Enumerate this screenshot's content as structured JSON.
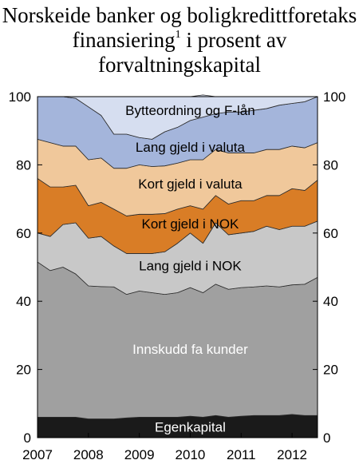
{
  "chart_data": {
    "type": "area",
    "stacked": true,
    "title": {
      "line1": "Norskeide banker og boligkredittforetaks",
      "line2_main": "finansiering",
      "line2_sup": "1",
      "line2_rest": " i prosent av",
      "line3": "forvaltningskapital"
    },
    "xlabel": "",
    "ylabel": "",
    "xlim": [
      2007,
      2012.5
    ],
    "ylim": [
      0,
      100
    ],
    "x_ticks": [
      "2007",
      "2008",
      "2009",
      "2010",
      "2011",
      "2012"
    ],
    "y_ticks": [
      "0",
      "20",
      "40",
      "60",
      "80",
      "100"
    ],
    "grid": false,
    "legend": "none",
    "x": [
      2007.0,
      2007.25,
      2007.5,
      2007.75,
      2008.0,
      2008.25,
      2008.5,
      2008.75,
      2009.0,
      2009.25,
      2009.5,
      2009.75,
      2010.0,
      2010.25,
      2010.5,
      2010.75,
      2011.0,
      2011.25,
      2011.5,
      2011.75,
      2012.0,
      2012.25,
      2012.5
    ],
    "series": [
      {
        "name": "Egenkapital",
        "color": "#1a1a1a",
        "values": [
          6.0,
          6.0,
          6.0,
          6.0,
          5.5,
          5.5,
          5.5,
          5.8,
          6.0,
          6.0,
          6.0,
          6.0,
          6.3,
          6.0,
          6.5,
          6.0,
          6.3,
          6.5,
          6.5,
          6.5,
          6.8,
          6.5,
          6.5
        ]
      },
      {
        "name": "Innskudd fa kunder",
        "color": "#a0a0a0",
        "values": [
          45.5,
          43.0,
          44.0,
          42.0,
          39.0,
          38.8,
          38.7,
          36.2,
          37.0,
          36.5,
          36.0,
          36.5,
          37.7,
          36.5,
          38.5,
          37.5,
          37.7,
          37.7,
          38.0,
          37.7,
          38.0,
          38.5,
          40.5
        ]
      },
      {
        "name": "Lang gjeld i NOK",
        "color": "#c8c8c8",
        "values": [
          8.5,
          10.0,
          12.5,
          15.0,
          14.0,
          14.7,
          12.0,
          12.0,
          11.0,
          11.5,
          12.5,
          14.5,
          16.0,
          14.5,
          18.0,
          16.0,
          16.0,
          16.3,
          17.5,
          16.8,
          17.2,
          17.0,
          16.5
        ]
      },
      {
        "name": "Kort gjeld i NOK",
        "color": "#d97d26",
        "values": [
          16.0,
          14.5,
          11.0,
          11.0,
          9.5,
          10.0,
          10.8,
          11.0,
          11.5,
          11.5,
          11.2,
          10.0,
          8.0,
          10.0,
          8.0,
          9.0,
          9.5,
          9.0,
          9.0,
          10.0,
          11.0,
          10.5,
          12.0
        ]
      },
      {
        "name": "Kort gjeld i valuta",
        "color": "#f0c89b",
        "values": [
          11.5,
          13.0,
          12.0,
          11.5,
          13.5,
          13.0,
          12.0,
          14.0,
          14.5,
          14.0,
          14.0,
          13.5,
          13.5,
          14.5,
          13.5,
          15.0,
          14.0,
          14.0,
          13.5,
          13.5,
          12.5,
          12.5,
          11.0
        ]
      },
      {
        "name": "Lang gjeld i valuta",
        "color": "#a4b5db",
        "values": [
          12.5,
          13.5,
          14.5,
          14.0,
          15.5,
          12.5,
          10.0,
          10.0,
          8.0,
          8.0,
          10.0,
          10.5,
          11.5,
          12.5,
          10.5,
          12.0,
          12.0,
          12.5,
          12.0,
          13.0,
          12.5,
          13.5,
          13.5
        ]
      },
      {
        "name": "Bytteordning og F-lån",
        "color": "#d6def0",
        "values": [
          0.0,
          0.0,
          0.0,
          0.5,
          3.0,
          5.5,
          11.0,
          11.0,
          12.0,
          12.5,
          10.3,
          9.0,
          7.0,
          6.5,
          5.0,
          4.5,
          4.5,
          4.0,
          3.5,
          2.5,
          2.0,
          1.5,
          0.0
        ]
      }
    ],
    "label_anchors": [
      {
        "series": 0,
        "x": 2010.0,
        "y": 3.2
      },
      {
        "series": 1,
        "x": 2010.0,
        "y": 26.0
      },
      {
        "series": 2,
        "x": 2010.0,
        "y": 50.5
      },
      {
        "series": 3,
        "x": 2010.0,
        "y": 62.8
      },
      {
        "series": 4,
        "x": 2010.0,
        "y": 74.5
      },
      {
        "series": 5,
        "x": 2010.0,
        "y": 85.2
      },
      {
        "series": 6,
        "x": 2010.0,
        "y": 96.0
      }
    ],
    "label_colors": [
      "#ffffff",
      "#ffffff",
      "#000000",
      "#000000",
      "#000000",
      "#000000",
      "#000000"
    ]
  }
}
